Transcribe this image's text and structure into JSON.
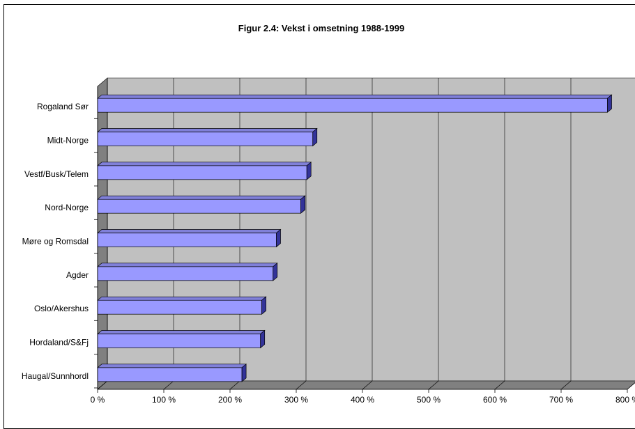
{
  "colors": {
    "wall": "#c0c0c0",
    "floor": "#808080",
    "side_wall": "#808080",
    "bar_front": "#9999ff",
    "bar_top": "#8080d9",
    "bar_side": "#333399",
    "grid": "#000000"
  },
  "chart_data": {
    "type": "bar",
    "orientation": "horizontal",
    "title": "Figur 2.4: Vekst i omsetning 1988-1999",
    "categories": [
      "Rogaland Sør",
      "Midt-Norge",
      "Vestf/Busk/Telem",
      "Nord-Norge",
      "Møre og Romsdal",
      "Agder",
      "Oslo/Akershus",
      "Hordaland/S&Fj",
      "Haugal/Sunnhordl"
    ],
    "values": [
      770,
      325,
      316,
      307,
      270,
      265,
      248,
      246,
      218
    ],
    "xlim": [
      0,
      800
    ],
    "x_ticks": [
      "0 %",
      "100 %",
      "200 %",
      "300 %",
      "400 %",
      "500 %",
      "600 %",
      "700 %",
      "800 %"
    ],
    "grid": true,
    "legend": "none"
  }
}
